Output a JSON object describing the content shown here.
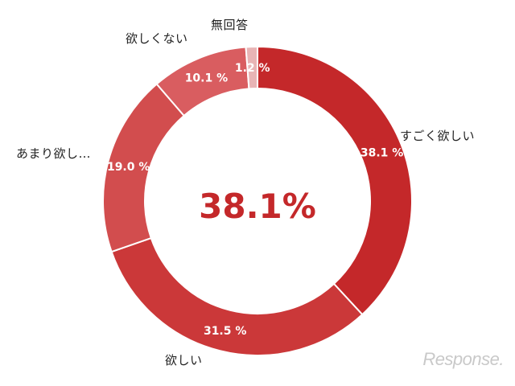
{
  "chart_data": {
    "type": "pie",
    "variant": "donut",
    "categories": [
      "すごく欲しい",
      "欲しい",
      "あまり欲し…",
      "欲しくない",
      "無回答"
    ],
    "values": [
      38.1,
      31.5,
      19.0,
      10.1,
      1.2
    ],
    "value_labels": [
      "38.1 %",
      "31.5 %",
      "19.0 %",
      "10.1 %",
      "1.2 %"
    ],
    "colors": [
      "#c4282a",
      "#cb3839",
      "#d24d4e",
      "#d95d60",
      "#e8b4b5"
    ],
    "center_label": "38.1%",
    "start_angle": "top",
    "direction": "clockwise"
  },
  "watermark": "Response."
}
